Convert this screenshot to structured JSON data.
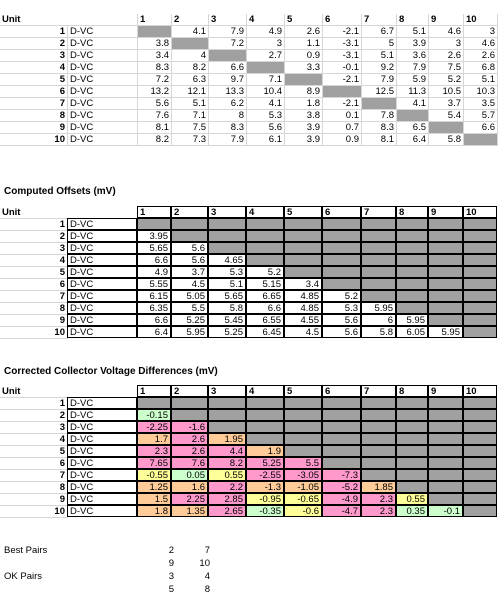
{
  "table1": {
    "header": [
      "Unit",
      "1",
      "2",
      "3",
      "4",
      "5",
      "6",
      "7",
      "8",
      "9",
      "10"
    ],
    "rows": [
      {
        "unit": "1",
        "name": "D-VC",
        "values": [
          null,
          "4.1",
          "7.9",
          "4.9",
          "2.6",
          "-2.1",
          "6.7",
          "5.1",
          "4.6",
          "3"
        ]
      },
      {
        "unit": "2",
        "name": "D-VC",
        "values": [
          "3.8",
          null,
          "7.2",
          "3",
          "1.1",
          "-3.1",
          "5",
          "3.9",
          "3",
          "4.6"
        ]
      },
      {
        "unit": "3",
        "name": "D-VC",
        "values": [
          "3.4",
          "4",
          null,
          "2.7",
          "0.9",
          "-3.1",
          "5.1",
          "3.6",
          "2.6",
          "2.6"
        ]
      },
      {
        "unit": "4",
        "name": "D-VC",
        "values": [
          "8.3",
          "8.2",
          "6.6",
          null,
          "3.3",
          "-0.1",
          "9.2",
          "7.9",
          "7.5",
          "6.8"
        ]
      },
      {
        "unit": "5",
        "name": "D-VC",
        "values": [
          "7.2",
          "6.3",
          "9.7",
          "7.1",
          null,
          "-2.1",
          "7.9",
          "5.9",
          "5.2",
          "5.1"
        ]
      },
      {
        "unit": "6",
        "name": "D-VC",
        "values": [
          "13.2",
          "12.1",
          "13.3",
          "10.4",
          "8.9",
          null,
          "12.5",
          "11.3",
          "10.5",
          "10.3"
        ]
      },
      {
        "unit": "7",
        "name": "D-VC",
        "values": [
          "5.6",
          "5.1",
          "6.2",
          "4.1",
          "1.8",
          "-2.1",
          null,
          "4.1",
          "3.7",
          "3.5"
        ]
      },
      {
        "unit": "8",
        "name": "D-VC",
        "values": [
          "7.6",
          "7.1",
          "8",
          "5.3",
          "3.8",
          "0.1",
          "7.8",
          null,
          "5.4",
          "5.7"
        ]
      },
      {
        "unit": "9",
        "name": "D-VC",
        "values": [
          "8.1",
          "7.5",
          "8.3",
          "5.6",
          "3.9",
          "0.7",
          "8.3",
          "6.5",
          null,
          "6.6"
        ]
      },
      {
        "unit": "10",
        "name": "D-VC",
        "values": [
          "8.2",
          "7.3",
          "7.9",
          "6.1",
          "3.9",
          "0.9",
          "8.1",
          "6.4",
          "5.8",
          null
        ]
      }
    ]
  },
  "table2": {
    "title": "Computed Offsets (mV)",
    "header": [
      "Unit",
      "1",
      "2",
      "3",
      "4",
      "5",
      "6",
      "7",
      "8",
      "9",
      "10"
    ],
    "rows": [
      {
        "unit": "1",
        "name": "D-VC",
        "values": []
      },
      {
        "unit": "2",
        "name": "D-VC",
        "values": [
          "3.95"
        ]
      },
      {
        "unit": "3",
        "name": "D-VC",
        "values": [
          "5.65",
          "5.6"
        ]
      },
      {
        "unit": "4",
        "name": "D-VC",
        "values": [
          "6.6",
          "5.6",
          "4.65"
        ]
      },
      {
        "unit": "5",
        "name": "D-VC",
        "values": [
          "4.9",
          "3.7",
          "5.3",
          "5.2"
        ]
      },
      {
        "unit": "6",
        "name": "D-VC",
        "values": [
          "5.55",
          "4.5",
          "5.1",
          "5.15",
          "3.4"
        ]
      },
      {
        "unit": "7",
        "name": "D-VC",
        "values": [
          "6.15",
          "5.05",
          "5.65",
          "6.65",
          "4.85",
          "5.2"
        ]
      },
      {
        "unit": "8",
        "name": "D-VC",
        "values": [
          "6.35",
          "5.5",
          "5.8",
          "6.6",
          "4.85",
          "5.3",
          "5.95"
        ]
      },
      {
        "unit": "9",
        "name": "D-VC",
        "values": [
          "6.6",
          "5.25",
          "5.45",
          "6.55",
          "4.55",
          "5.6",
          "6",
          "5.95"
        ]
      },
      {
        "unit": "10",
        "name": "D-VC",
        "values": [
          "6.4",
          "5.95",
          "5.25",
          "6.45",
          "4.5",
          "5.6",
          "5.8",
          "6.05",
          "5.95"
        ]
      }
    ]
  },
  "table3": {
    "title": "Corrected Collector Voltage Differences (mV)",
    "header": [
      "Unit",
      "1",
      "2",
      "3",
      "4",
      "5",
      "6",
      "7",
      "8",
      "9",
      "10"
    ],
    "colors": {
      "green": "#ccffcc",
      "pink": "#ff99cc",
      "orange": "#ffcc99",
      "yellow": "#ffff99",
      "gray": "#a0a0a0"
    },
    "rows": [
      {
        "unit": "1",
        "name": "D-VC",
        "values": [],
        "colors": []
      },
      {
        "unit": "2",
        "name": "D-VC",
        "values": [
          "-0.15"
        ],
        "colors": [
          "green"
        ]
      },
      {
        "unit": "3",
        "name": "D-VC",
        "values": [
          "-2.25",
          "-1.6"
        ],
        "colors": [
          "pink",
          "pink"
        ]
      },
      {
        "unit": "4",
        "name": "D-VC",
        "values": [
          "1.7",
          "2.6",
          "1.95"
        ],
        "colors": [
          "orange",
          "pink",
          "orange"
        ]
      },
      {
        "unit": "5",
        "name": "D-VC",
        "values": [
          "2.3",
          "2.6",
          "4.4",
          "1.9"
        ],
        "colors": [
          "pink",
          "pink",
          "pink",
          "orange"
        ]
      },
      {
        "unit": "6",
        "name": "D-VC",
        "values": [
          "7.65",
          "7.6",
          "8.2",
          "5.25",
          "5.5"
        ],
        "colors": [
          "pink",
          "pink",
          "pink",
          "pink",
          "pink"
        ]
      },
      {
        "unit": "7",
        "name": "D-VC",
        "values": [
          "-0.55",
          "0.05",
          "0.55",
          "-2.55",
          "-3.05",
          "-7.3"
        ],
        "colors": [
          "yellow",
          "green",
          "yellow",
          "pink",
          "pink",
          "pink"
        ]
      },
      {
        "unit": "8",
        "name": "D-VC",
        "values": [
          "1.25",
          "1.6",
          "2.2",
          "-1.3",
          "-1.05",
          "-5.2",
          "1.85"
        ],
        "colors": [
          "orange",
          "orange",
          "pink",
          "orange",
          "orange",
          "pink",
          "orange"
        ]
      },
      {
        "unit": "9",
        "name": "D-VC",
        "values": [
          "1.5",
          "2.25",
          "2.85",
          "-0.95",
          "-0.65",
          "-4.9",
          "2.3",
          "0.55"
        ],
        "colors": [
          "orange",
          "pink",
          "pink",
          "yellow",
          "yellow",
          "pink",
          "pink",
          "yellow"
        ]
      },
      {
        "unit": "10",
        "name": "D-VC",
        "values": [
          "1.8",
          "1.35",
          "2.65",
          "-0.35",
          "-0.6",
          "-4.7",
          "2.3",
          "0.35",
          "-0.1"
        ],
        "colors": [
          "orange",
          "orange",
          "pink",
          "green",
          "yellow",
          "pink",
          "pink",
          "green",
          "green"
        ]
      }
    ]
  },
  "summary": {
    "best_label": "Best Pairs",
    "best_pairs": [
      [
        "2",
        "7"
      ],
      [
        "9",
        "10"
      ]
    ],
    "ok_label": "OK Pairs",
    "ok_pairs": [
      [
        "3",
        "4"
      ],
      [
        "5",
        "8"
      ]
    ]
  }
}
